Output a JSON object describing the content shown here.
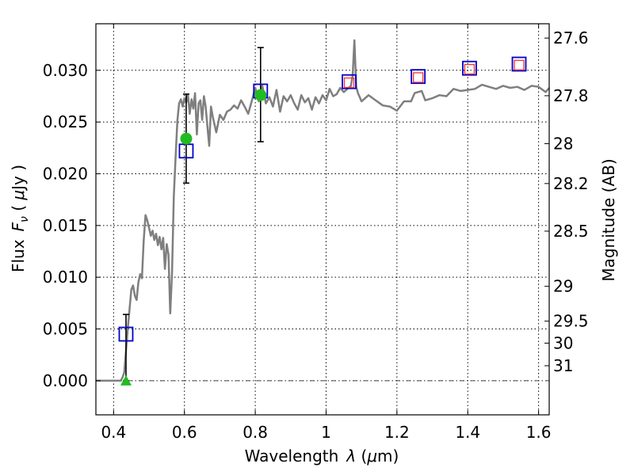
{
  "chart_data": {
    "type": "scatter",
    "xlabel_text": "Wavelength",
    "xlabel_symbol": "λ",
    "xlabel_unit_open": " (",
    "xlabel_unit_mu": "μ",
    "xlabel_unit_rest": "m)",
    "ylabel_text": "Flux",
    "ylabel_symbol": "F",
    "ylabel_subscript": "ν",
    "ylabel_unit_open": " ( ",
    "ylabel_unit_mu": "μ",
    "ylabel_unit_rest": "Jy )",
    "y2label": "Magnitude (AB)",
    "xlim": [
      0.35,
      1.63
    ],
    "ylim": [
      -0.0033,
      0.0345
    ],
    "grid": true,
    "x_ticks": [
      {
        "value": 0.4,
        "label": "0.4"
      },
      {
        "value": 0.6,
        "label": "0.6"
      },
      {
        "value": 0.8,
        "label": "0.8"
      },
      {
        "value": 1.0,
        "label": "1"
      },
      {
        "value": 1.2,
        "label": "1.2"
      },
      {
        "value": 1.4,
        "label": "1.4"
      },
      {
        "value": 1.6,
        "label": "1.6"
      }
    ],
    "y_ticks": [
      {
        "value": 0.0,
        "label": "0.000"
      },
      {
        "value": 0.005,
        "label": "0.005"
      },
      {
        "value": 0.01,
        "label": "0.010"
      },
      {
        "value": 0.015,
        "label": "0.015"
      },
      {
        "value": 0.02,
        "label": "0.020"
      },
      {
        "value": 0.025,
        "label": "0.025"
      },
      {
        "value": 0.03,
        "label": "0.030"
      }
    ],
    "y2_ticks": [
      {
        "value": 27.6,
        "label": "27.6"
      },
      {
        "value": 27.8,
        "label": "27.8"
      },
      {
        "value": 28.0,
        "label": "28"
      },
      {
        "value": 28.2,
        "label": "28.2"
      },
      {
        "value": 28.5,
        "label": "28.5"
      },
      {
        "value": 29.0,
        "label": "29"
      },
      {
        "value": 29.5,
        "label": "29.5"
      },
      {
        "value": 30.0,
        "label": "30"
      },
      {
        "value": 31.0,
        "label": "31"
      }
    ],
    "model_spectrum": {
      "color": "#7f7f7f",
      "x": [
        0.35,
        0.42,
        0.425,
        0.43,
        0.44,
        0.45,
        0.455,
        0.46,
        0.465,
        0.47,
        0.475,
        0.48,
        0.485,
        0.49,
        0.495,
        0.5,
        0.505,
        0.51,
        0.515,
        0.52,
        0.525,
        0.53,
        0.535,
        0.54,
        0.545,
        0.55,
        0.555,
        0.56,
        0.565,
        0.57,
        0.575,
        0.58,
        0.585,
        0.59,
        0.595,
        0.6,
        0.605,
        0.61,
        0.615,
        0.62,
        0.625,
        0.63,
        0.635,
        0.64,
        0.645,
        0.65,
        0.655,
        0.66,
        0.665,
        0.67,
        0.675,
        0.68,
        0.69,
        0.7,
        0.71,
        0.72,
        0.73,
        0.74,
        0.75,
        0.76,
        0.77,
        0.78,
        0.79,
        0.8,
        0.81,
        0.82,
        0.83,
        0.84,
        0.85,
        0.86,
        0.87,
        0.88,
        0.89,
        0.9,
        0.91,
        0.92,
        0.93,
        0.94,
        0.95,
        0.96,
        0.97,
        0.98,
        0.99,
        1.0,
        1.01,
        1.02,
        1.03,
        1.04,
        1.05,
        1.06,
        1.07,
        1.075,
        1.08,
        1.085,
        1.09,
        1.1,
        1.12,
        1.14,
        1.16,
        1.18,
        1.2,
        1.22,
        1.24,
        1.25,
        1.27,
        1.28,
        1.3,
        1.32,
        1.34,
        1.36,
        1.38,
        1.4,
        1.42,
        1.44,
        1.46,
        1.48,
        1.5,
        1.52,
        1.54,
        1.56,
        1.58,
        1.6,
        1.62,
        1.63
      ],
      "y": [
        0,
        0,
        0.0003,
        0.0008,
        0.005,
        0.0088,
        0.0092,
        0.0082,
        0.0078,
        0.0095,
        0.0103,
        0.0099,
        0.0135,
        0.016,
        0.0155,
        0.0148,
        0.014,
        0.0145,
        0.0136,
        0.0142,
        0.0131,
        0.0139,
        0.0127,
        0.0138,
        0.0108,
        0.0132,
        0.0122,
        0.0065,
        0.0105,
        0.0178,
        0.0215,
        0.0251,
        0.0268,
        0.0272,
        0.0265,
        0.0273,
        0.0269,
        0.0276,
        0.0258,
        0.0272,
        0.0263,
        0.0278,
        0.0238,
        0.0268,
        0.0271,
        0.0252,
        0.0275,
        0.0265,
        0.0245,
        0.0227,
        0.0265,
        0.0255,
        0.024,
        0.0257,
        0.0252,
        0.026,
        0.0262,
        0.0266,
        0.0263,
        0.0271,
        0.0265,
        0.0258,
        0.027,
        0.0283,
        0.027,
        0.0285,
        0.0268,
        0.0274,
        0.0265,
        0.0281,
        0.026,
        0.0275,
        0.027,
        0.0276,
        0.0268,
        0.0262,
        0.0276,
        0.0269,
        0.0273,
        0.0262,
        0.0274,
        0.0268,
        0.0276,
        0.0271,
        0.0282,
        0.0275,
        0.0277,
        0.0283,
        0.0279,
        0.0282,
        0.0285,
        0.0295,
        0.0329,
        0.0284,
        0.0278,
        0.027,
        0.0276,
        0.0271,
        0.0266,
        0.0265,
        0.0261,
        0.027,
        0.027,
        0.0278,
        0.028,
        0.0271,
        0.0273,
        0.0276,
        0.0275,
        0.0282,
        0.028,
        0.0281,
        0.0282,
        0.0286,
        0.0284,
        0.0282,
        0.0285,
        0.0283,
        0.0284,
        0.0281,
        0.0285,
        0.0284,
        0.0279,
        0.0283
      ]
    },
    "model_photometry": {
      "color": "#0000cc",
      "x": [
        0.435,
        0.605,
        0.815,
        1.065,
        1.26,
        1.405,
        1.545
      ],
      "y": [
        0.0045,
        0.0222,
        0.028,
        0.0289,
        0.0294,
        0.0302,
        0.0306
      ]
    },
    "observed_photometry": {
      "color": "#ff3030",
      "x": [
        1.065,
        1.26,
        1.405,
        1.545
      ],
      "y": [
        0.0288,
        0.0293,
        0.0301,
        0.0305
      ]
    },
    "detections": {
      "color": "#22bb22",
      "x": [
        0.605,
        0.815
      ],
      "y": [
        0.0234,
        0.0276
      ],
      "err_low": [
        0.0191,
        0.0231
      ],
      "err_high": [
        0.0277,
        0.0322
      ]
    },
    "upper_limit": {
      "color": "#22bb22",
      "x": 0.435,
      "y": 0.0,
      "err_low": 0.0,
      "err_high": 0.0064
    }
  }
}
